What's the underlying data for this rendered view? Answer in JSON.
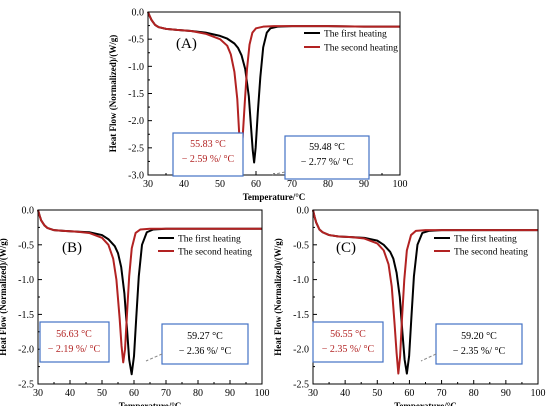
{
  "colors": {
    "first": "#000000",
    "second": "#b22222",
    "annotation_box": "#4472c4",
    "axis": "#000000"
  },
  "chart_data": [
    {
      "type": "line",
      "panel_label": "(A)",
      "xlabel": "Temperature/°C",
      "ylabel": "Heat Flow (Normalized)/(W/g)",
      "xlim": [
        30,
        100
      ],
      "ylim": [
        -3.0,
        0.0
      ],
      "xticks": [
        "30",
        "40",
        "50",
        "60",
        "70",
        "80",
        "90",
        "100"
      ],
      "yticks": [
        "0.0",
        "-0.5",
        "-1.0",
        "-1.5",
        "-2.0",
        "-2.5",
        "-3.0"
      ],
      "xtick_values": [
        30,
        40,
        50,
        60,
        70,
        80,
        90,
        100
      ],
      "ytick_values": [
        0,
        -0.5,
        -1.0,
        -1.5,
        -2.0,
        -2.5,
        -3.0
      ],
      "series": [
        {
          "name": "The first heating",
          "color": "#000000",
          "x": [
            30,
            30.5,
            31,
            32,
            33,
            35,
            38,
            42,
            46,
            50,
            52,
            54,
            55,
            56,
            57,
            58,
            58.6,
            59.1,
            59.48,
            59.9,
            60.5,
            61.2,
            62,
            63,
            64,
            66,
            70,
            80,
            90,
            100
          ],
          "y": [
            0.0,
            -0.08,
            -0.15,
            -0.24,
            -0.28,
            -0.31,
            -0.33,
            -0.35,
            -0.38,
            -0.44,
            -0.49,
            -0.58,
            -0.66,
            -0.8,
            -1.05,
            -1.55,
            -2.1,
            -2.55,
            -2.77,
            -2.5,
            -1.85,
            -1.2,
            -0.65,
            -0.38,
            -0.3,
            -0.27,
            -0.26,
            -0.26,
            -0.27,
            -0.27
          ]
        },
        {
          "name": "The second heating",
          "color": "#b22222",
          "x": [
            30,
            30.5,
            31,
            32,
            33,
            35,
            38,
            42,
            46,
            50,
            52,
            53,
            54,
            54.8,
            55.3,
            55.83,
            56.3,
            56.9,
            57.5,
            58.2,
            59,
            60,
            62,
            65,
            70,
            80,
            90,
            100
          ],
          "y": [
            0.0,
            -0.08,
            -0.15,
            -0.24,
            -0.28,
            -0.31,
            -0.33,
            -0.35,
            -0.4,
            -0.5,
            -0.62,
            -0.78,
            -1.1,
            -1.6,
            -2.2,
            -2.59,
            -2.3,
            -1.65,
            -1.05,
            -0.6,
            -0.38,
            -0.3,
            -0.27,
            -0.26,
            -0.26,
            -0.26,
            -0.27,
            -0.27
          ]
        }
      ],
      "annotations": [
        {
          "lines": [
            "55.83 °C",
            "− 2.59 %/ °C"
          ],
          "series": "The second heating"
        },
        {
          "lines": [
            "59.48 °C",
            "− 2.77 %/ °C"
          ],
          "series": "The first heating"
        }
      ]
    },
    {
      "type": "line",
      "panel_label": "(B)",
      "xlabel": "Temperature/°C",
      "ylabel": "Heat Flow (Normalized)/(W/g)",
      "xlim": [
        30,
        100
      ],
      "ylim": [
        -2.5,
        0.0
      ],
      "xticks": [
        "30",
        "40",
        "50",
        "60",
        "70",
        "80",
        "90",
        "100"
      ],
      "yticks": [
        "0.0",
        "-0.5",
        "-1.0",
        "-1.5",
        "-2.0",
        "-2.5"
      ],
      "xtick_values": [
        30,
        40,
        50,
        60,
        70,
        80,
        90,
        100
      ],
      "ytick_values": [
        0,
        -0.5,
        -1.0,
        -1.5,
        -2.0,
        -2.5
      ],
      "series": [
        {
          "name": "The first heating",
          "color": "#000000",
          "x": [
            30,
            30.5,
            31,
            32,
            33,
            35,
            38,
            42,
            46,
            50,
            52,
            54,
            55,
            56,
            57,
            57.8,
            58.5,
            59.27,
            60,
            60.7,
            61.5,
            62.5,
            64,
            66,
            70,
            80,
            90,
            100
          ],
          "y": [
            0.0,
            -0.08,
            -0.15,
            -0.22,
            -0.26,
            -0.29,
            -0.3,
            -0.31,
            -0.32,
            -0.36,
            -0.42,
            -0.52,
            -0.62,
            -0.82,
            -1.2,
            -1.7,
            -2.15,
            -2.36,
            -2.1,
            -1.55,
            -0.95,
            -0.5,
            -0.32,
            -0.28,
            -0.27,
            -0.27,
            -0.27,
            -0.27
          ]
        },
        {
          "name": "The second heating",
          "color": "#b22222",
          "x": [
            30,
            30.5,
            31,
            32,
            33,
            35,
            38,
            42,
            46,
            50,
            52,
            53.5,
            54.5,
            55.5,
            56.1,
            56.63,
            57.2,
            57.8,
            58.5,
            59.3,
            60.5,
            62,
            65,
            70,
            80,
            90,
            100
          ],
          "y": [
            0.0,
            -0.08,
            -0.15,
            -0.22,
            -0.26,
            -0.29,
            -0.3,
            -0.31,
            -0.33,
            -0.4,
            -0.5,
            -0.7,
            -1.0,
            -1.55,
            -1.95,
            -2.19,
            -2.0,
            -1.5,
            -0.95,
            -0.55,
            -0.33,
            -0.28,
            -0.27,
            -0.27,
            -0.27,
            -0.27,
            -0.27
          ]
        }
      ],
      "annotations": [
        {
          "lines": [
            "56.63 °C",
            "− 2.19 %/ °C"
          ],
          "series": "The second heating"
        },
        {
          "lines": [
            "59.27 °C",
            "− 2.36 %/ °C"
          ],
          "series": "The first heating"
        }
      ]
    },
    {
      "type": "line",
      "panel_label": "(C)",
      "xlabel": "Temperature/°C",
      "ylabel": "Heat Flow (Normalized)/(W/g)",
      "xlim": [
        30,
        100
      ],
      "ylim": [
        -2.5,
        0.0
      ],
      "xticks": [
        "30",
        "40",
        "50",
        "60",
        "70",
        "80",
        "90",
        "100"
      ],
      "yticks": [
        "0.0",
        "-0.5",
        "-1.0",
        "-1.5",
        "-2.0",
        "-2.5"
      ],
      "xtick_values": [
        30,
        40,
        50,
        60,
        70,
        80,
        90,
        100
      ],
      "ytick_values": [
        0,
        -0.5,
        -1.0,
        -1.5,
        -2.0,
        -2.5
      ],
      "series": [
        {
          "name": "The first heating",
          "color": "#000000",
          "x": [
            30,
            30.5,
            31,
            32,
            33,
            35,
            38,
            42,
            46,
            50,
            52,
            54,
            55,
            56,
            57,
            57.8,
            58.5,
            59.2,
            59.9,
            60.6,
            61.4,
            62.5,
            64,
            66,
            70,
            80,
            90,
            100
          ],
          "y": [
            0.0,
            -0.1,
            -0.18,
            -0.28,
            -0.32,
            -0.36,
            -0.38,
            -0.39,
            -0.4,
            -0.44,
            -0.5,
            -0.6,
            -0.7,
            -0.9,
            -1.25,
            -1.75,
            -2.15,
            -2.35,
            -2.1,
            -1.55,
            -0.95,
            -0.5,
            -0.33,
            -0.3,
            -0.29,
            -0.29,
            -0.29,
            -0.29
          ]
        },
        {
          "name": "The second heating",
          "color": "#b22222",
          "x": [
            30,
            30.5,
            31,
            32,
            33,
            35,
            38,
            42,
            46,
            50,
            52,
            53.5,
            54.5,
            55.4,
            56,
            56.55,
            57.1,
            57.7,
            58.4,
            59.2,
            60.5,
            62,
            65,
            70,
            80,
            90,
            100
          ],
          "y": [
            0.0,
            -0.1,
            -0.18,
            -0.28,
            -0.32,
            -0.36,
            -0.38,
            -0.39,
            -0.41,
            -0.48,
            -0.58,
            -0.78,
            -1.1,
            -1.65,
            -2.05,
            -2.35,
            -2.1,
            -1.55,
            -1.0,
            -0.58,
            -0.36,
            -0.3,
            -0.29,
            -0.29,
            -0.29,
            -0.29,
            -0.29
          ]
        }
      ],
      "annotations": [
        {
          "lines": [
            "56.55 °C",
            "− 2.35 %/ °C"
          ],
          "series": "The second heating"
        },
        {
          "lines": [
            "59.20 °C",
            "− 2.35 %/ °C"
          ],
          "series": "The first heating"
        }
      ]
    }
  ]
}
